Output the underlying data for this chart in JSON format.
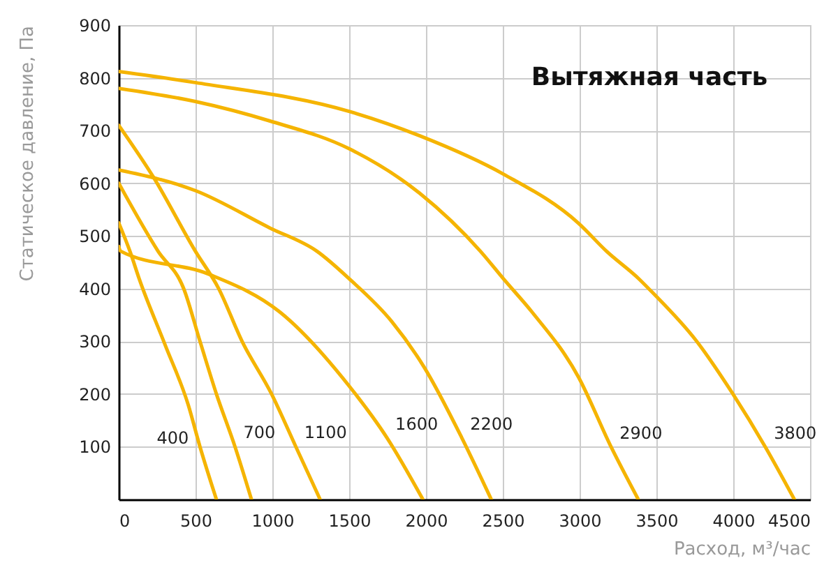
{
  "chart_data": {
    "type": "line",
    "title": "Вытяжная часть",
    "xlabel": "Расход, м³/час",
    "ylabel": "Статическое давление, Па",
    "xlim": [
      0,
      4500
    ],
    "xticks": [
      0,
      500,
      1000,
      1500,
      2000,
      2500,
      3000,
      3500,
      4000,
      4500
    ],
    "ylim": [
      0,
      900
    ],
    "yticks": [
      100,
      200,
      300,
      400,
      500,
      600,
      700,
      800,
      900
    ],
    "grid": true,
    "marker": "none",
    "line_style": "solid",
    "series": [
      {
        "name": "400",
        "color": "#f5b400",
        "x": [
          0,
          73,
          134,
          301,
          453,
          529,
          636
        ],
        "values": [
          525,
          471,
          418,
          294,
          179,
          100,
          0
        ]
      },
      {
        "name": "700",
        "color": "#f5b400",
        "x": [
          0,
          256,
          423,
          529,
          636,
          757,
          864
        ],
        "values": [
          600,
          471,
          400,
          300,
          200,
          100,
          0
        ]
      },
      {
        "name": "1100",
        "color": "#f5b400",
        "x": [
          0,
          225,
          499,
          651,
          803,
          995,
          1153,
          1311
        ],
        "values": [
          710,
          612,
          471,
          400,
          300,
          200,
          100,
          0
        ]
      },
      {
        "name": "1600",
        "color": "#f5b400",
        "x": [
          0,
          13,
          590,
          1047,
          1503,
          1746,
          1980
        ],
        "values": [
          480,
          471,
          427,
          356,
          214,
          117,
          0
        ]
      },
      {
        "name": "2200",
        "color": "#f5b400",
        "x": [
          0,
          499,
          985,
          1290,
          1503,
          1776,
          1990,
          2233,
          2425
        ],
        "values": [
          625,
          586,
          515,
          471,
          418,
          338,
          250,
          117,
          0
        ]
      },
      {
        "name": "2900",
        "color": "#f5b400",
        "x": [
          0,
          499,
          985,
          1503,
          1959,
          2354,
          2506,
          2689,
          2993,
          3206,
          3382
        ],
        "values": [
          780,
          755,
          718,
          665,
          581,
          471,
          418,
          356,
          232,
          99,
          0
        ]
      },
      {
        "name": "3800",
        "color": "#f5b400",
        "x": [
          0,
          499,
          1503,
          1959,
          2506,
          2993,
          3175,
          3388,
          3480,
          3754,
          3996,
          4210,
          4398
        ],
        "values": [
          812,
          791,
          736,
          690,
          617,
          524,
          471,
          418,
          391,
          303,
          201,
          99,
          0
        ]
      }
    ]
  }
}
